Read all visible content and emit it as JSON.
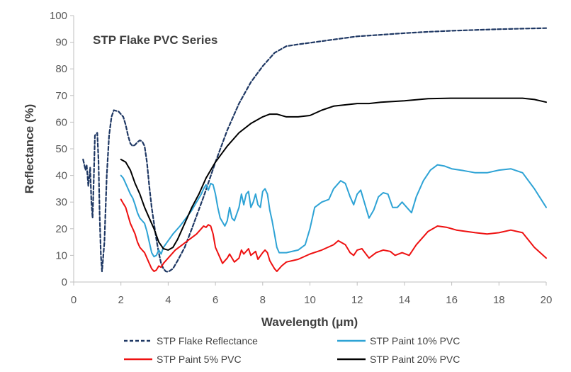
{
  "chart_data": {
    "type": "line",
    "title": "STP Flake PVC Series",
    "xlabel": "Wavelength (μm)",
    "ylabel": "Reflectance (%)",
    "xlim": [
      0,
      20
    ],
    "ylim": [
      0,
      100
    ],
    "x_ticks": [
      0,
      2,
      4,
      6,
      8,
      10,
      12,
      14,
      16,
      18,
      20
    ],
    "y_ticks": [
      0,
      10,
      20,
      30,
      40,
      50,
      60,
      70,
      80,
      90,
      100
    ],
    "grid": false,
    "legend_position": "bottom",
    "series": [
      {
        "name": "STP Flake Reflectance",
        "color": "#1f3864",
        "dash": "dashed",
        "points": [
          [
            0.4,
            46
          ],
          [
            0.5,
            42
          ],
          [
            0.55,
            44
          ],
          [
            0.62,
            36
          ],
          [
            0.7,
            43
          ],
          [
            0.75,
            30
          ],
          [
            0.8,
            24
          ],
          [
            0.85,
            38
          ],
          [
            0.9,
            55
          ],
          [
            1.0,
            56
          ],
          [
            1.05,
            46
          ],
          [
            1.1,
            25
          ],
          [
            1.15,
            10
          ],
          [
            1.2,
            4
          ],
          [
            1.3,
            15
          ],
          [
            1.4,
            40
          ],
          [
            1.5,
            55
          ],
          [
            1.6,
            62
          ],
          [
            1.7,
            64.5
          ],
          [
            1.9,
            64
          ],
          [
            2.1,
            62
          ],
          [
            2.2,
            59
          ],
          [
            2.3,
            55
          ],
          [
            2.4,
            52
          ],
          [
            2.5,
            51
          ],
          [
            2.6,
            51.5
          ],
          [
            2.7,
            52.5
          ],
          [
            2.8,
            53.2
          ],
          [
            2.9,
            52.8
          ],
          [
            3.0,
            51
          ],
          [
            3.1,
            45
          ],
          [
            3.2,
            36
          ],
          [
            3.3,
            28
          ],
          [
            3.4,
            22
          ],
          [
            3.5,
            16
          ],
          [
            3.6,
            11
          ],
          [
            3.7,
            7
          ],
          [
            3.8,
            5
          ],
          [
            3.9,
            4
          ],
          [
            4.0,
            3.8
          ],
          [
            4.2,
            5
          ],
          [
            4.4,
            8
          ],
          [
            4.7,
            13
          ],
          [
            5.0,
            20
          ],
          [
            5.5,
            32
          ],
          [
            6.0,
            45
          ],
          [
            6.5,
            57
          ],
          [
            7.0,
            67
          ],
          [
            7.5,
            75
          ],
          [
            8.0,
            81
          ],
          [
            8.5,
            86
          ],
          [
            9.0,
            88.5
          ],
          [
            9.5,
            89.2
          ],
          [
            10,
            89.8
          ],
          [
            11,
            91
          ],
          [
            12,
            92.2
          ],
          [
            13,
            92.8
          ],
          [
            14,
            93.4
          ],
          [
            15,
            93.9
          ],
          [
            16,
            94.3
          ],
          [
            17,
            94.6
          ],
          [
            18,
            94.9
          ],
          [
            19,
            95.1
          ],
          [
            20,
            95.3
          ]
        ]
      },
      {
        "name": "STP Paint 10% PVC",
        "color": "#2ea3d5",
        "dash": "solid",
        "points": [
          [
            2.0,
            40
          ],
          [
            2.1,
            39
          ],
          [
            2.2,
            37
          ],
          [
            2.3,
            35
          ],
          [
            2.4,
            33
          ],
          [
            2.5,
            31.5
          ],
          [
            2.6,
            29
          ],
          [
            2.7,
            26
          ],
          [
            2.8,
            24
          ],
          [
            2.9,
            23
          ],
          [
            3.0,
            22
          ],
          [
            3.1,
            19
          ],
          [
            3.2,
            15
          ],
          [
            3.3,
            11
          ],
          [
            3.4,
            9.5
          ],
          [
            3.5,
            10
          ],
          [
            3.6,
            12
          ],
          [
            3.7,
            10.5
          ],
          [
            3.8,
            13
          ],
          [
            4.0,
            15.5
          ],
          [
            4.2,
            18
          ],
          [
            4.5,
            21
          ],
          [
            4.8,
            24.5
          ],
          [
            5.0,
            27
          ],
          [
            5.2,
            30
          ],
          [
            5.4,
            33
          ],
          [
            5.5,
            35
          ],
          [
            5.6,
            36.5
          ],
          [
            5.7,
            34.5
          ],
          [
            5.8,
            37
          ],
          [
            5.9,
            36.5
          ],
          [
            6.0,
            33
          ],
          [
            6.1,
            28
          ],
          [
            6.2,
            24
          ],
          [
            6.4,
            21
          ],
          [
            6.5,
            23
          ],
          [
            6.6,
            28
          ],
          [
            6.7,
            24
          ],
          [
            6.8,
            23
          ],
          [
            7.0,
            28
          ],
          [
            7.1,
            33
          ],
          [
            7.2,
            29
          ],
          [
            7.3,
            33
          ],
          [
            7.4,
            34
          ],
          [
            7.5,
            28
          ],
          [
            7.6,
            30
          ],
          [
            7.7,
            33
          ],
          [
            7.8,
            29
          ],
          [
            7.9,
            28
          ],
          [
            8.0,
            34
          ],
          [
            8.1,
            35
          ],
          [
            8.2,
            33
          ],
          [
            8.3,
            27
          ],
          [
            8.4,
            23
          ],
          [
            8.5,
            18
          ],
          [
            8.6,
            13
          ],
          [
            8.7,
            11
          ],
          [
            9.0,
            11
          ],
          [
            9.5,
            12
          ],
          [
            9.8,
            14
          ],
          [
            10.0,
            20
          ],
          [
            10.2,
            28
          ],
          [
            10.5,
            30
          ],
          [
            10.8,
            31
          ],
          [
            11.0,
            35
          ],
          [
            11.3,
            38
          ],
          [
            11.5,
            37
          ],
          [
            11.7,
            32
          ],
          [
            11.85,
            29
          ],
          [
            12.0,
            33
          ],
          [
            12.15,
            34.5
          ],
          [
            12.3,
            30
          ],
          [
            12.5,
            24
          ],
          [
            12.7,
            27
          ],
          [
            12.9,
            32
          ],
          [
            13.1,
            33.5
          ],
          [
            13.3,
            33
          ],
          [
            13.5,
            28
          ],
          [
            13.7,
            28
          ],
          [
            13.9,
            30
          ],
          [
            14.1,
            28
          ],
          [
            14.3,
            26
          ],
          [
            14.5,
            32
          ],
          [
            14.8,
            38
          ],
          [
            15.1,
            42
          ],
          [
            15.4,
            44
          ],
          [
            15.7,
            43.5
          ],
          [
            16.0,
            42.5
          ],
          [
            16.5,
            41.8
          ],
          [
            17.0,
            41
          ],
          [
            17.5,
            41
          ],
          [
            18.0,
            42
          ],
          [
            18.5,
            42.5
          ],
          [
            19.0,
            41
          ],
          [
            19.5,
            35
          ],
          [
            20,
            28
          ]
        ]
      },
      {
        "name": "STP Paint 5% PVC",
        "color": "#ee1111",
        "dash": "solid",
        "points": [
          [
            2.0,
            31
          ],
          [
            2.1,
            29.5
          ],
          [
            2.2,
            28
          ],
          [
            2.3,
            25
          ],
          [
            2.4,
            22
          ],
          [
            2.5,
            20
          ],
          [
            2.6,
            18
          ],
          [
            2.7,
            15
          ],
          [
            2.8,
            13
          ],
          [
            2.9,
            12
          ],
          [
            3.0,
            11
          ],
          [
            3.1,
            9
          ],
          [
            3.2,
            7
          ],
          [
            3.3,
            5
          ],
          [
            3.4,
            4
          ],
          [
            3.5,
            4.5
          ],
          [
            3.6,
            6
          ],
          [
            3.7,
            5.5
          ],
          [
            3.8,
            7
          ],
          [
            4.0,
            9
          ],
          [
            4.3,
            12
          ],
          [
            4.6,
            14
          ],
          [
            4.9,
            16
          ],
          [
            5.2,
            18
          ],
          [
            5.4,
            20
          ],
          [
            5.5,
            21
          ],
          [
            5.6,
            20.5
          ],
          [
            5.7,
            21.5
          ],
          [
            5.8,
            21
          ],
          [
            5.9,
            18
          ],
          [
            6.0,
            13
          ],
          [
            6.2,
            9
          ],
          [
            6.3,
            7
          ],
          [
            6.5,
            9
          ],
          [
            6.6,
            10.5
          ],
          [
            6.8,
            7.5
          ],
          [
            7.0,
            9
          ],
          [
            7.1,
            12
          ],
          [
            7.2,
            10.5
          ],
          [
            7.4,
            12.5
          ],
          [
            7.5,
            10
          ],
          [
            7.7,
            11.5
          ],
          [
            7.8,
            8.5
          ],
          [
            8.0,
            11
          ],
          [
            8.1,
            12
          ],
          [
            8.2,
            11
          ],
          [
            8.3,
            8
          ],
          [
            8.5,
            5
          ],
          [
            8.6,
            4
          ],
          [
            8.8,
            6
          ],
          [
            9.0,
            7.5
          ],
          [
            9.5,
            8.5
          ],
          [
            10,
            10.5
          ],
          [
            10.5,
            12
          ],
          [
            11.0,
            14
          ],
          [
            11.2,
            15.5
          ],
          [
            11.5,
            14
          ],
          [
            11.7,
            11
          ],
          [
            11.85,
            10
          ],
          [
            12.0,
            12
          ],
          [
            12.2,
            12.5
          ],
          [
            12.5,
            9
          ],
          [
            12.8,
            11
          ],
          [
            13.1,
            12
          ],
          [
            13.4,
            11.5
          ],
          [
            13.6,
            10
          ],
          [
            13.9,
            11
          ],
          [
            14.2,
            10
          ],
          [
            14.5,
            14
          ],
          [
            15.0,
            19
          ],
          [
            15.4,
            21
          ],
          [
            15.8,
            20.5
          ],
          [
            16.2,
            19.5
          ],
          [
            17.0,
            18.5
          ],
          [
            17.5,
            18
          ],
          [
            18.0,
            18.5
          ],
          [
            18.5,
            19.5
          ],
          [
            19.0,
            18.5
          ],
          [
            19.5,
            13
          ],
          [
            20,
            9
          ]
        ]
      },
      {
        "name": "STP Paint 20% PVC",
        "color": "#000000",
        "dash": "solid",
        "points": [
          [
            2.0,
            46
          ],
          [
            2.2,
            45
          ],
          [
            2.4,
            42
          ],
          [
            2.6,
            37
          ],
          [
            2.8,
            33
          ],
          [
            3.0,
            28
          ],
          [
            3.2,
            24
          ],
          [
            3.4,
            20
          ],
          [
            3.6,
            15
          ],
          [
            3.8,
            12.5
          ],
          [
            4.0,
            12
          ],
          [
            4.2,
            13
          ],
          [
            4.4,
            16
          ],
          [
            4.7,
            22
          ],
          [
            5.0,
            28
          ],
          [
            5.3,
            33
          ],
          [
            5.6,
            39
          ],
          [
            6.0,
            45
          ],
          [
            6.5,
            51
          ],
          [
            7.0,
            56
          ],
          [
            7.5,
            59.5
          ],
          [
            8.0,
            62
          ],
          [
            8.3,
            63
          ],
          [
            8.6,
            63
          ],
          [
            9.0,
            62
          ],
          [
            9.5,
            62
          ],
          [
            10,
            62.5
          ],
          [
            10.5,
            64.5
          ],
          [
            11,
            66
          ],
          [
            12,
            67
          ],
          [
            12.5,
            67
          ],
          [
            13,
            67.5
          ],
          [
            14,
            68
          ],
          [
            15,
            68.8
          ],
          [
            16,
            69
          ],
          [
            17,
            69
          ],
          [
            18,
            69
          ],
          [
            19,
            69
          ],
          [
            19.5,
            68.5
          ],
          [
            20,
            67.5
          ]
        ]
      }
    ]
  }
}
